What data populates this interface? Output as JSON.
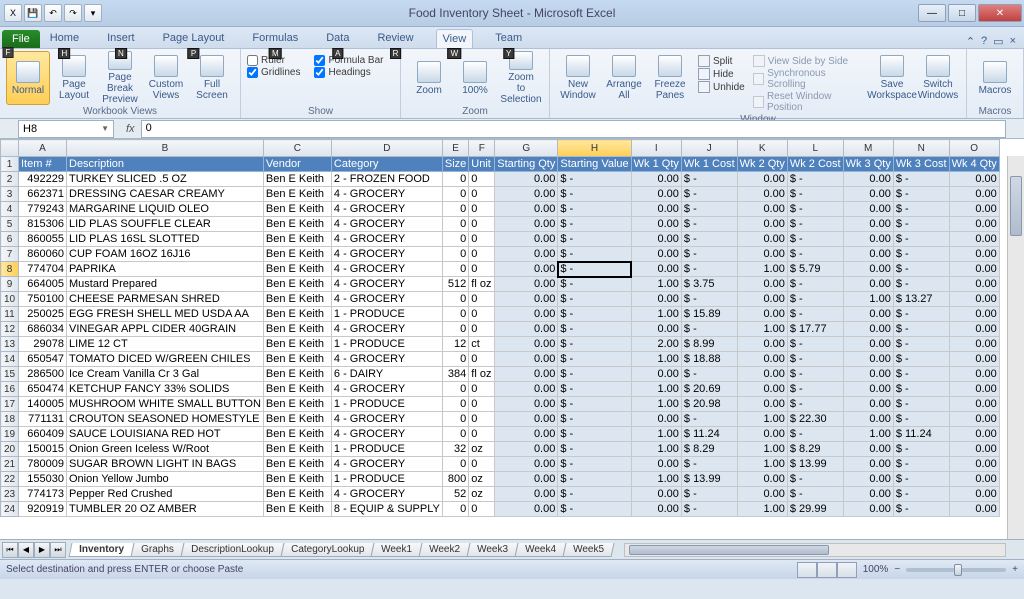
{
  "app": {
    "title": "Food Inventory Sheet  -  Microsoft Excel"
  },
  "qat": {
    "items": [
      "excel",
      "save",
      "undo",
      "redo"
    ]
  },
  "tabs": {
    "file": "File",
    "list": [
      "Home",
      "Insert",
      "Page Layout",
      "Formulas",
      "Data",
      "Review",
      "View",
      "Team"
    ],
    "keytips": [
      "H",
      "N",
      "P",
      "M",
      "A",
      "R",
      "W",
      "Y"
    ],
    "file_keytip": "F",
    "active": "View"
  },
  "ribbon": {
    "groups": {
      "workbook_views": {
        "label": "Workbook Views",
        "buttons": [
          "Normal",
          "Page Layout",
          "Page Break Preview",
          "Custom Views",
          "Full Screen"
        ]
      },
      "show": {
        "label": "Show",
        "checks": [
          {
            "label": "Ruler",
            "checked": false
          },
          {
            "label": "Gridlines",
            "checked": true
          },
          {
            "label": "Formula Bar",
            "checked": true
          },
          {
            "label": "Headings",
            "checked": true
          }
        ]
      },
      "zoom": {
        "label": "Zoom",
        "buttons": [
          "Zoom",
          "100%",
          "Zoom to Selection"
        ]
      },
      "window": {
        "label": "Window",
        "buttons": [
          "New Window",
          "Arrange All",
          "Freeze Panes"
        ],
        "toggles": [
          "Split",
          "Hide",
          "Unhide"
        ],
        "side": [
          "View Side by Side",
          "Synchronous Scrolling",
          "Reset Window Position"
        ],
        "right": [
          "Save Workspace",
          "Switch Windows"
        ]
      },
      "macros": {
        "label": "Macros",
        "button": "Macros"
      }
    }
  },
  "namebox": "H8",
  "formula": "0",
  "columns": {
    "letters": [
      "A",
      "B",
      "C",
      "D",
      "E",
      "F",
      "G",
      "H",
      "I",
      "J",
      "K",
      "L",
      "M",
      "N",
      "O"
    ],
    "headers": [
      "Item #",
      "Description",
      "Vendor",
      "Category",
      "Size",
      "Unit",
      "Starting Qty",
      "Starting Value",
      "Wk 1 Qty",
      "Wk 1 Cost",
      "Wk 2 Qty",
      "Wk 2 Cost",
      "Wk 3 Qty",
      "Wk 3 Cost",
      "Wk 4 Qty"
    ]
  },
  "active_cell": {
    "row": 8,
    "col": "H"
  },
  "rows": [
    {
      "n": 2,
      "item": "492229",
      "desc": "TURKEY SLICED .5 OZ",
      "vendor": "Ben E Keith",
      "cat": "2 - FROZEN FOOD",
      "size": "0",
      "unit": "0",
      "sqty": "0.00",
      "sval": "$        -",
      "w1q": "0.00",
      "w1c": "$      -",
      "w2q": "0.00",
      "w2c": "$      -",
      "w3q": "0.00",
      "w3c": "$      -",
      "w4q": "0.00"
    },
    {
      "n": 3,
      "item": "662371",
      "desc": "DRESSING CAESAR CREAMY",
      "vendor": "Ben E Keith",
      "cat": "4 - GROCERY",
      "size": "0",
      "unit": "0",
      "sqty": "0.00",
      "sval": "$        -",
      "w1q": "0.00",
      "w1c": "$      -",
      "w2q": "0.00",
      "w2c": "$      -",
      "w3q": "0.00",
      "w3c": "$      -",
      "w4q": "0.00"
    },
    {
      "n": 4,
      "item": "779243",
      "desc": "MARGARINE LIQUID OLEO",
      "vendor": "Ben E Keith",
      "cat": "4 - GROCERY",
      "size": "0",
      "unit": "0",
      "sqty": "0.00",
      "sval": "$        -",
      "w1q": "0.00",
      "w1c": "$      -",
      "w2q": "0.00",
      "w2c": "$      -",
      "w3q": "0.00",
      "w3c": "$      -",
      "w4q": "0.00"
    },
    {
      "n": 5,
      "item": "815306",
      "desc": "LID PLAS SOUFFLE CLEAR",
      "vendor": "Ben E Keith",
      "cat": "4 - GROCERY",
      "size": "0",
      "unit": "0",
      "sqty": "0.00",
      "sval": "$        -",
      "w1q": "0.00",
      "w1c": "$      -",
      "w2q": "0.00",
      "w2c": "$      -",
      "w3q": "0.00",
      "w3c": "$      -",
      "w4q": "0.00"
    },
    {
      "n": 6,
      "item": "860055",
      "desc": "LID PLAS 16SL SLOTTED",
      "vendor": "Ben E Keith",
      "cat": "4 - GROCERY",
      "size": "0",
      "unit": "0",
      "sqty": "0.00",
      "sval": "$        -",
      "w1q": "0.00",
      "w1c": "$      -",
      "w2q": "0.00",
      "w2c": "$      -",
      "w3q": "0.00",
      "w3c": "$      -",
      "w4q": "0.00"
    },
    {
      "n": 7,
      "item": "860060",
      "desc": "CUP FOAM 16OZ 16J16",
      "vendor": "Ben E Keith",
      "cat": "4 - GROCERY",
      "size": "0",
      "unit": "0",
      "sqty": "0.00",
      "sval": "$        -",
      "w1q": "0.00",
      "w1c": "$      -",
      "w2q": "0.00",
      "w2c": "$      -",
      "w3q": "0.00",
      "w3c": "$      -",
      "w4q": "0.00"
    },
    {
      "n": 8,
      "item": "774704",
      "desc": "PAPRIKA",
      "vendor": "Ben E Keith",
      "cat": "4 - GROCERY",
      "size": "0",
      "unit": "0",
      "sqty": "0.00",
      "sval": "$        -",
      "w1q": "0.00",
      "w1c": "$      -",
      "w2q": "1.00",
      "w2c": "$   5.79",
      "w3q": "0.00",
      "w3c": "$      -",
      "w4q": "0.00"
    },
    {
      "n": 9,
      "item": "664005",
      "desc": "Mustard Prepared",
      "vendor": "Ben E Keith",
      "cat": "4 - GROCERY",
      "size": "512",
      "unit": "fl oz",
      "sqty": "0.00",
      "sval": "$        -",
      "w1q": "1.00",
      "w1c": "$   3.75",
      "w2q": "0.00",
      "w2c": "$      -",
      "w3q": "0.00",
      "w3c": "$      -",
      "w4q": "0.00"
    },
    {
      "n": 10,
      "item": "750100",
      "desc": "CHEESE PARMESAN SHRED",
      "vendor": "Ben E Keith",
      "cat": "4 - GROCERY",
      "size": "0",
      "unit": "0",
      "sqty": "0.00",
      "sval": "$        -",
      "w1q": "0.00",
      "w1c": "$      -",
      "w2q": "0.00",
      "w2c": "$      -",
      "w3q": "1.00",
      "w3c": "$ 13.27",
      "w4q": "0.00"
    },
    {
      "n": 11,
      "item": "250025",
      "desc": "EGG FRESH SHELL MED USDA AA",
      "vendor": "Ben E Keith",
      "cat": "1 - PRODUCE",
      "size": "0",
      "unit": "0",
      "sqty": "0.00",
      "sval": "$        -",
      "w1q": "1.00",
      "w1c": "$ 15.89",
      "w2q": "0.00",
      "w2c": "$      -",
      "w3q": "0.00",
      "w3c": "$      -",
      "w4q": "0.00"
    },
    {
      "n": 12,
      "item": "686034",
      "desc": "VINEGAR APPL CIDER 40GRAIN",
      "vendor": "Ben E Keith",
      "cat": "4 - GROCERY",
      "size": "0",
      "unit": "0",
      "sqty": "0.00",
      "sval": "$        -",
      "w1q": "0.00",
      "w1c": "$      -",
      "w2q": "1.00",
      "w2c": "$ 17.77",
      "w3q": "0.00",
      "w3c": "$      -",
      "w4q": "0.00"
    },
    {
      "n": 13,
      "item": "29078",
      "desc": "LIME 12 CT",
      "vendor": "Ben E Keith",
      "cat": "1 - PRODUCE",
      "size": "12",
      "unit": "ct",
      "sqty": "0.00",
      "sval": "$        -",
      "w1q": "2.00",
      "w1c": "$   8.99",
      "w2q": "0.00",
      "w2c": "$      -",
      "w3q": "0.00",
      "w3c": "$      -",
      "w4q": "0.00"
    },
    {
      "n": 14,
      "item": "650547",
      "desc": "TOMATO DICED W/GREEN CHILES",
      "vendor": "Ben E Keith",
      "cat": "4 - GROCERY",
      "size": "0",
      "unit": "0",
      "sqty": "0.00",
      "sval": "$        -",
      "w1q": "1.00",
      "w1c": "$ 18.88",
      "w2q": "0.00",
      "w2c": "$      -",
      "w3q": "0.00",
      "w3c": "$      -",
      "w4q": "0.00"
    },
    {
      "n": 15,
      "item": "286500",
      "desc": "Ice Cream Vanilla Cr 3 Gal",
      "vendor": "Ben E Keith",
      "cat": "6 - DAIRY",
      "size": "384",
      "unit": "fl oz",
      "sqty": "0.00",
      "sval": "$        -",
      "w1q": "0.00",
      "w1c": "$      -",
      "w2q": "0.00",
      "w2c": "$      -",
      "w3q": "0.00",
      "w3c": "$      -",
      "w4q": "0.00"
    },
    {
      "n": 16,
      "item": "650474",
      "desc": "KETCHUP FANCY 33% SOLIDS",
      "vendor": "Ben E Keith",
      "cat": "4 - GROCERY",
      "size": "0",
      "unit": "0",
      "sqty": "0.00",
      "sval": "$        -",
      "w1q": "1.00",
      "w1c": "$ 20.69",
      "w2q": "0.00",
      "w2c": "$      -",
      "w3q": "0.00",
      "w3c": "$      -",
      "w4q": "0.00"
    },
    {
      "n": 17,
      "item": "140005",
      "desc": "MUSHROOM WHITE SMALL BUTTON",
      "vendor": "Ben E Keith",
      "cat": "1 - PRODUCE",
      "size": "0",
      "unit": "0",
      "sqty": "0.00",
      "sval": "$        -",
      "w1q": "1.00",
      "w1c": "$ 20.98",
      "w2q": "0.00",
      "w2c": "$      -",
      "w3q": "0.00",
      "w3c": "$      -",
      "w4q": "0.00"
    },
    {
      "n": 18,
      "item": "771131",
      "desc": "CROUTON SEASONED HOMESTYLE",
      "vendor": "Ben E Keith",
      "cat": "4 - GROCERY",
      "size": "0",
      "unit": "0",
      "sqty": "0.00",
      "sval": "$        -",
      "w1q": "0.00",
      "w1c": "$      -",
      "w2q": "1.00",
      "w2c": "$ 22.30",
      "w3q": "0.00",
      "w3c": "$      -",
      "w4q": "0.00"
    },
    {
      "n": 19,
      "item": "660409",
      "desc": "SAUCE LOUISIANA RED HOT",
      "vendor": "Ben E Keith",
      "cat": "4 - GROCERY",
      "size": "0",
      "unit": "0",
      "sqty": "0.00",
      "sval": "$        -",
      "w1q": "1.00",
      "w1c": "$ 11.24",
      "w2q": "0.00",
      "w2c": "$      -",
      "w3q": "1.00",
      "w3c": "$ 11.24",
      "w4q": "0.00"
    },
    {
      "n": 20,
      "item": "150015",
      "desc": "Onion Green Iceless W/Root",
      "vendor": "Ben E Keith",
      "cat": "1 - PRODUCE",
      "size": "32",
      "unit": "oz",
      "sqty": "0.00",
      "sval": "$        -",
      "w1q": "1.00",
      "w1c": "$   8.29",
      "w2q": "1.00",
      "w2c": "$   8.29",
      "w3q": "0.00",
      "w3c": "$      -",
      "w4q": "0.00"
    },
    {
      "n": 21,
      "item": "780009",
      "desc": "SUGAR BROWN LIGHT IN BAGS",
      "vendor": "Ben E Keith",
      "cat": "4 - GROCERY",
      "size": "0",
      "unit": "0",
      "sqty": "0.00",
      "sval": "$        -",
      "w1q": "0.00",
      "w1c": "$      -",
      "w2q": "1.00",
      "w2c": "$ 13.99",
      "w3q": "0.00",
      "w3c": "$      -",
      "w4q": "0.00"
    },
    {
      "n": 22,
      "item": "155030",
      "desc": "Onion Yellow Jumbo",
      "vendor": "Ben E Keith",
      "cat": "1 - PRODUCE",
      "size": "800",
      "unit": "oz",
      "sqty": "0.00",
      "sval": "$        -",
      "w1q": "1.00",
      "w1c": "$ 13.99",
      "w2q": "0.00",
      "w2c": "$      -",
      "w3q": "0.00",
      "w3c": "$      -",
      "w4q": "0.00"
    },
    {
      "n": 23,
      "item": "774173",
      "desc": "Pepper Red Crushed",
      "vendor": "Ben E Keith",
      "cat": "4 - GROCERY",
      "size": "52",
      "unit": "oz",
      "sqty": "0.00",
      "sval": "$        -",
      "w1q": "0.00",
      "w1c": "$      -",
      "w2q": "0.00",
      "w2c": "$      -",
      "w3q": "0.00",
      "w3c": "$      -",
      "w4q": "0.00"
    },
    {
      "n": 24,
      "item": "920919",
      "desc": "TUMBLER 20 OZ AMBER",
      "vendor": "Ben E Keith",
      "cat": "8 - EQUIP & SUPPLY",
      "size": "0",
      "unit": "0",
      "sqty": "0.00",
      "sval": "$        -",
      "w1q": "0.00",
      "w1c": "$      -",
      "w2q": "1.00",
      "w2c": "$ 29.99",
      "w3q": "0.00",
      "w3c": "$      -",
      "w4q": "0.00"
    }
  ],
  "sheet_tabs": [
    "Inventory",
    "Graphs",
    "DescriptionLookup",
    "CategoryLookup",
    "Week1",
    "Week2",
    "Week3",
    "Week4",
    "Week5"
  ],
  "active_sheet": "Inventory",
  "status": "Select destination and press ENTER or choose Paste",
  "zoom": "100%"
}
